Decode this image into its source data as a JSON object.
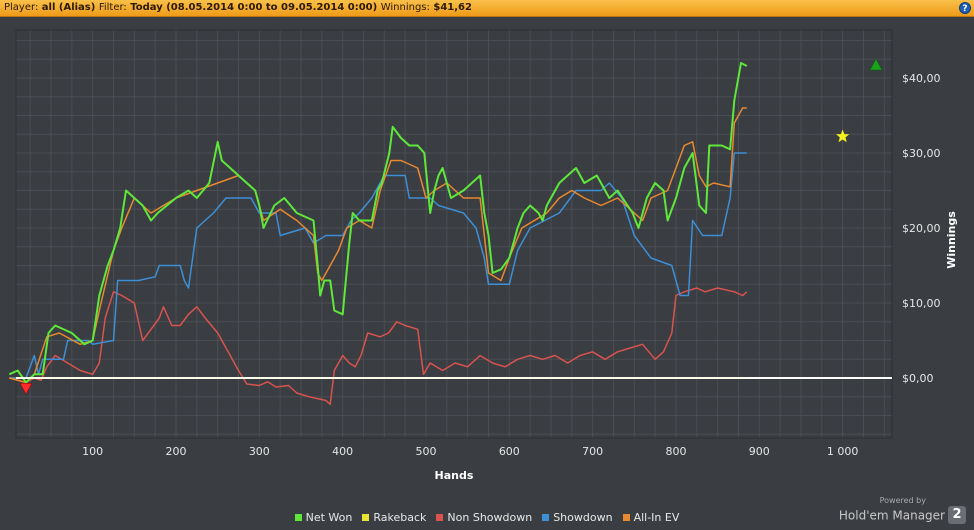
{
  "header": {
    "player_label": "Player:",
    "player_value": "all (Alias)",
    "filter_label": "Filter:",
    "filter_value": "Today (08.05.2014 0:00 to 09.05.2014 0:00)",
    "winnings_label": "Winnings:",
    "winnings_value": "$41,62",
    "help_icon": "?"
  },
  "branding": {
    "powered_by": "Powered by",
    "name": "Hold'em Manager",
    "badge": "2"
  },
  "colors": {
    "background": "#3a3d42",
    "grid": "#52565c",
    "net_won": "#5ee83a",
    "rakeback": "#e8e235",
    "non_showdown": "#d9534f",
    "showdown": "#3d8fd6",
    "all_in_ev": "#e8892f",
    "zero_line": "#ffffff"
  },
  "chart_data": {
    "type": "line",
    "xlabel": "Hands",
    "ylabel": "Winnings",
    "xlim": [
      0,
      1050
    ],
    "ylim": [
      -8,
      46
    ],
    "x_ticks": [
      100,
      200,
      300,
      400,
      500,
      600,
      700,
      800,
      900,
      1000
    ],
    "x_tick_labels": [
      "100",
      "200",
      "300",
      "400",
      "500",
      "600",
      "700",
      "800",
      "900",
      "1 000"
    ],
    "y_ticks": [
      0,
      10,
      20,
      30,
      40
    ],
    "y_tick_labels": [
      "$0,00",
      "$10,00",
      "$20,00",
      "$30,00",
      "$40,00"
    ],
    "grid": true,
    "legend_position": "bottom",
    "markers": [
      {
        "type": "min",
        "shape": "triangle-down",
        "color": "#ff2a2a",
        "x": 20,
        "y": -1.5
      },
      {
        "type": "max",
        "shape": "triangle-up",
        "color": "#1aa31a",
        "x": 1040,
        "y": 41.6
      },
      {
        "type": "rakeback",
        "shape": "star",
        "color": "#f3f01f",
        "x": 1000,
        "y": 32.2
      }
    ],
    "series": [
      {
        "name": "Net Won",
        "color": "#5ee83a",
        "width": 2,
        "points": [
          [
            0,
            0.5
          ],
          [
            10,
            1
          ],
          [
            20,
            -0.6
          ],
          [
            30,
            0.5
          ],
          [
            40,
            0.5
          ],
          [
            47,
            6
          ],
          [
            55,
            7
          ],
          [
            75,
            6
          ],
          [
            90,
            4.5
          ],
          [
            100,
            5
          ],
          [
            108,
            11
          ],
          [
            118,
            15
          ],
          [
            125,
            17
          ],
          [
            133,
            20
          ],
          [
            140,
            25
          ],
          [
            150,
            24
          ],
          [
            160,
            23
          ],
          [
            170,
            21
          ],
          [
            178,
            22
          ],
          [
            200,
            24
          ],
          [
            215,
            25
          ],
          [
            225,
            24
          ],
          [
            240,
            26
          ],
          [
            250,
            31.5
          ],
          [
            255,
            29
          ],
          [
            265,
            28
          ],
          [
            275,
            27
          ],
          [
            285,
            26
          ],
          [
            295,
            25
          ],
          [
            300,
            23
          ],
          [
            305,
            20
          ],
          [
            318,
            23
          ],
          [
            330,
            24
          ],
          [
            345,
            22
          ],
          [
            365,
            21
          ],
          [
            370,
            15
          ],
          [
            373,
            11
          ],
          [
            378,
            13
          ],
          [
            385,
            13
          ],
          [
            390,
            9
          ],
          [
            400,
            8.5
          ],
          [
            408,
            18
          ],
          [
            412,
            22
          ],
          [
            420,
            21
          ],
          [
            435,
            21
          ],
          [
            442,
            25
          ],
          [
            447,
            26
          ],
          [
            456,
            30
          ],
          [
            460,
            33.5
          ],
          [
            470,
            32
          ],
          [
            480,
            31
          ],
          [
            490,
            31
          ],
          [
            498,
            30
          ],
          [
            505,
            22
          ],
          [
            510,
            25
          ],
          [
            515,
            27
          ],
          [
            520,
            28
          ],
          [
            530,
            24
          ],
          [
            545,
            25
          ],
          [
            565,
            27
          ],
          [
            570,
            22
          ],
          [
            575,
            19
          ],
          [
            580,
            14
          ],
          [
            590,
            14.5
          ],
          [
            600,
            16
          ],
          [
            610,
            20
          ],
          [
            617,
            22
          ],
          [
            625,
            23
          ],
          [
            635,
            22
          ],
          [
            640,
            21
          ],
          [
            645,
            23
          ],
          [
            660,
            26
          ],
          [
            670,
            27
          ],
          [
            680,
            28
          ],
          [
            690,
            26
          ],
          [
            705,
            27
          ],
          [
            720,
            24
          ],
          [
            730,
            25
          ],
          [
            748,
            22
          ],
          [
            755,
            20
          ],
          [
            765,
            24
          ],
          [
            775,
            26
          ],
          [
            785,
            25
          ],
          [
            790,
            21
          ],
          [
            800,
            24
          ],
          [
            810,
            28
          ],
          [
            820,
            30
          ],
          [
            828,
            23
          ],
          [
            836,
            22
          ],
          [
            840,
            31
          ],
          [
            855,
            31
          ],
          [
            865,
            30.5
          ],
          [
            870,
            37
          ],
          [
            878,
            42
          ],
          [
            885,
            41.6
          ]
        ]
      },
      {
        "name": "Rakeback",
        "color": "#e8e235",
        "width": 1.5,
        "points": [
          [
            0,
            0
          ],
          [
            885,
            0
          ]
        ]
      },
      {
        "name": "Non Showdown",
        "color": "#d9534f",
        "width": 1.5,
        "points": [
          [
            0,
            0
          ],
          [
            20,
            -0.6
          ],
          [
            30,
            0
          ],
          [
            38,
            -0.3
          ],
          [
            45,
            1.5
          ],
          [
            55,
            3
          ],
          [
            70,
            2
          ],
          [
            85,
            1
          ],
          [
            100,
            0.5
          ],
          [
            108,
            2
          ],
          [
            115,
            8
          ],
          [
            125,
            11.5
          ],
          [
            135,
            11
          ],
          [
            150,
            10
          ],
          [
            160,
            5
          ],
          [
            170,
            6.5
          ],
          [
            180,
            8
          ],
          [
            185,
            9.5
          ],
          [
            195,
            7
          ],
          [
            205,
            7
          ],
          [
            215,
            8.5
          ],
          [
            225,
            9.5
          ],
          [
            235,
            8
          ],
          [
            250,
            6
          ],
          [
            265,
            3
          ],
          [
            275,
            1
          ],
          [
            285,
            -0.8
          ],
          [
            300,
            -1
          ],
          [
            310,
            -0.5
          ],
          [
            320,
            -1.2
          ],
          [
            335,
            -1
          ],
          [
            345,
            -2
          ],
          [
            360,
            -2.5
          ],
          [
            380,
            -3
          ],
          [
            385,
            -3.5
          ],
          [
            390,
            1
          ],
          [
            400,
            3
          ],
          [
            408,
            2
          ],
          [
            415,
            1.5
          ],
          [
            422,
            3
          ],
          [
            430,
            6
          ],
          [
            445,
            5.5
          ],
          [
            455,
            6
          ],
          [
            465,
            7.5
          ],
          [
            475,
            7
          ],
          [
            490,
            6.5
          ],
          [
            497,
            0.5
          ],
          [
            505,
            2
          ],
          [
            520,
            1
          ],
          [
            535,
            2
          ],
          [
            550,
            1.5
          ],
          [
            565,
            3
          ],
          [
            580,
            2
          ],
          [
            595,
            1.5
          ],
          [
            610,
            2.5
          ],
          [
            625,
            3
          ],
          [
            640,
            2.5
          ],
          [
            655,
            3
          ],
          [
            670,
            2
          ],
          [
            685,
            3
          ],
          [
            700,
            3.5
          ],
          [
            715,
            2.5
          ],
          [
            730,
            3.5
          ],
          [
            745,
            4
          ],
          [
            760,
            4.5
          ],
          [
            775,
            2.5
          ],
          [
            785,
            3.5
          ],
          [
            795,
            6
          ],
          [
            800,
            11
          ],
          [
            810,
            11.5
          ],
          [
            825,
            12
          ],
          [
            835,
            11.5
          ],
          [
            850,
            12
          ],
          [
            870,
            11.5
          ],
          [
            880,
            11
          ],
          [
            885,
            11.5
          ]
        ]
      },
      {
        "name": "Showdown",
        "color": "#3d8fd6",
        "width": 1.5,
        "points": [
          [
            0,
            0
          ],
          [
            20,
            0
          ],
          [
            30,
            3
          ],
          [
            35,
            0.5
          ],
          [
            40,
            2.5
          ],
          [
            65,
            2.5
          ],
          [
            70,
            5
          ],
          [
            95,
            5
          ],
          [
            100,
            4.5
          ],
          [
            125,
            5
          ],
          [
            130,
            13
          ],
          [
            155,
            13
          ],
          [
            175,
            13.5
          ],
          [
            180,
            15
          ],
          [
            205,
            15
          ],
          [
            210,
            13
          ],
          [
            215,
            12
          ],
          [
            225,
            20
          ],
          [
            245,
            22
          ],
          [
            260,
            24
          ],
          [
            290,
            24
          ],
          [
            300,
            22
          ],
          [
            320,
            22
          ],
          [
            325,
            19
          ],
          [
            355,
            20
          ],
          [
            365,
            18
          ],
          [
            380,
            19
          ],
          [
            400,
            19
          ],
          [
            410,
            21
          ],
          [
            420,
            22
          ],
          [
            435,
            24
          ],
          [
            450,
            27
          ],
          [
            475,
            27
          ],
          [
            480,
            24
          ],
          [
            505,
            24
          ],
          [
            515,
            23
          ],
          [
            545,
            22
          ],
          [
            560,
            20
          ],
          [
            570,
            16
          ],
          [
            575,
            12.5
          ],
          [
            600,
            12.5
          ],
          [
            610,
            17
          ],
          [
            625,
            20
          ],
          [
            660,
            22
          ],
          [
            680,
            25
          ],
          [
            710,
            25
          ],
          [
            720,
            26
          ],
          [
            735,
            24
          ],
          [
            750,
            19
          ],
          [
            760,
            17.5
          ],
          [
            770,
            16
          ],
          [
            795,
            15
          ],
          [
            805,
            11
          ],
          [
            815,
            11
          ],
          [
            820,
            21
          ],
          [
            832,
            19
          ],
          [
            855,
            19
          ],
          [
            865,
            24
          ],
          [
            870,
            30
          ],
          [
            885,
            30
          ]
        ]
      },
      {
        "name": "All-In EV",
        "color": "#e8892f",
        "width": 1.5,
        "points": [
          [
            0,
            0
          ],
          [
            20,
            -0.6
          ],
          [
            30,
            0.5
          ],
          [
            45,
            5.5
          ],
          [
            60,
            6
          ],
          [
            85,
            4.5
          ],
          [
            100,
            5
          ],
          [
            110,
            10
          ],
          [
            125,
            17
          ],
          [
            135,
            20
          ],
          [
            150,
            24
          ],
          [
            170,
            22
          ],
          [
            200,
            24
          ],
          [
            225,
            25
          ],
          [
            250,
            26
          ],
          [
            275,
            27
          ],
          [
            295,
            25
          ],
          [
            305,
            21
          ],
          [
            325,
            22.5
          ],
          [
            345,
            21
          ],
          [
            365,
            19
          ],
          [
            370,
            14
          ],
          [
            375,
            13
          ],
          [
            385,
            15
          ],
          [
            395,
            17
          ],
          [
            405,
            20
          ],
          [
            420,
            21
          ],
          [
            435,
            20
          ],
          [
            445,
            25
          ],
          [
            458,
            29
          ],
          [
            470,
            29
          ],
          [
            490,
            28
          ],
          [
            500,
            24
          ],
          [
            510,
            25
          ],
          [
            525,
            26
          ],
          [
            545,
            24
          ],
          [
            565,
            24
          ],
          [
            575,
            14
          ],
          [
            590,
            13
          ],
          [
            600,
            16
          ],
          [
            615,
            20
          ],
          [
            630,
            21
          ],
          [
            645,
            22
          ],
          [
            660,
            24
          ],
          [
            675,
            25
          ],
          [
            690,
            24
          ],
          [
            710,
            23
          ],
          [
            730,
            24
          ],
          [
            750,
            22
          ],
          [
            760,
            21
          ],
          [
            770,
            24
          ],
          [
            790,
            25
          ],
          [
            800,
            28
          ],
          [
            810,
            31
          ],
          [
            820,
            31.5
          ],
          [
            828,
            27
          ],
          [
            836,
            25.5
          ],
          [
            845,
            26
          ],
          [
            865,
            25.5
          ],
          [
            870,
            34
          ],
          [
            880,
            36
          ],
          [
            885,
            36
          ]
        ]
      }
    ]
  }
}
